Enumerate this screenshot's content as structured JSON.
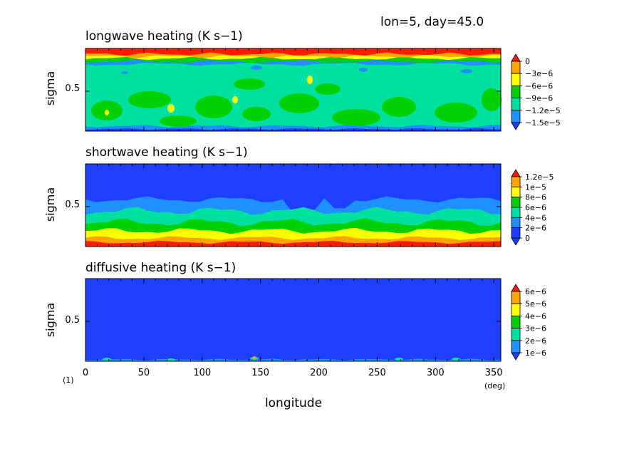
{
  "header": {
    "annotation": "lon=5, day=45.0"
  },
  "footer": {
    "panel_index": "(1)",
    "x_unit": "(deg)",
    "xlabel": "longitude"
  },
  "chart_data": [
    {
      "type": "heatmap",
      "title": "longwave heating (K s−1)",
      "xlabel": "longitude",
      "ylabel": "sigma",
      "xlim": [
        0,
        356
      ],
      "ylim": [
        0.05,
        0.95
      ],
      "y_ticks": [
        "0.5"
      ],
      "colorbar_labels": [
        "0",
        "−3e−6",
        "−6e−6",
        "−9e−6",
        "−1.2e−5",
        "−1.5e−5"
      ],
      "colorbar_values": [
        0,
        -3e-06,
        -6e-06,
        -9e-06,
        -1.2e-05,
        -1.5e-05
      ],
      "colors": [
        "#1f3fff",
        "#1e90ff",
        "#00e0a0",
        "#00d000",
        "#ffff00",
        "#ffa500",
        "#ff1a00"
      ]
    },
    {
      "type": "heatmap",
      "title": "shortwave heating (K s−1)",
      "xlabel": "longitude",
      "ylabel": "sigma",
      "xlim": [
        0,
        356
      ],
      "ylim": [
        0.05,
        0.95
      ],
      "y_ticks": [
        "0.5"
      ],
      "colorbar_labels": [
        "1.2e−5",
        "1e−5",
        "8e−6",
        "6e−6",
        "4e−6",
        "2e−6",
        "0"
      ],
      "colorbar_values": [
        1.2e-05,
        1e-05,
        8e-06,
        6e-06,
        4e-06,
        2e-06,
        0
      ],
      "colors": [
        "#1f3fff",
        "#1e90ff",
        "#00e0a0",
        "#00d000",
        "#ffff00",
        "#ffa500",
        "#ff1a00"
      ]
    },
    {
      "type": "heatmap",
      "title": "diffusive heating (K s−1)",
      "xlabel": "longitude",
      "ylabel": "sigma",
      "xlim": [
        0,
        356
      ],
      "ylim": [
        0.05,
        0.95
      ],
      "y_ticks": [
        "0.5"
      ],
      "x_ticks": [
        "0",
        "50",
        "100",
        "150",
        "200",
        "250",
        "300",
        "350"
      ],
      "colorbar_labels": [
        "6e−6",
        "5e−6",
        "4e−6",
        "3e−6",
        "2e−6",
        "1e−6"
      ],
      "colorbar_values": [
        6e-06,
        5e-06,
        4e-06,
        3e-06,
        2e-06,
        1e-06
      ],
      "colors": [
        "#1f3fff",
        "#1e90ff",
        "#00e0a0",
        "#00d000",
        "#ffff00",
        "#ffa500",
        "#ff1a00"
      ]
    }
  ]
}
